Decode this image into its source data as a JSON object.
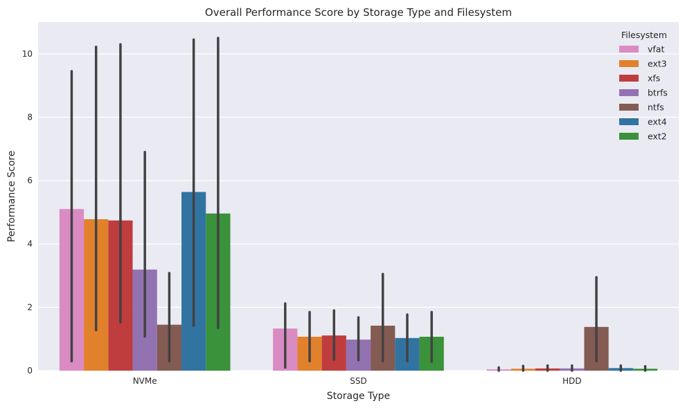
{
  "chart_data": {
    "type": "bar",
    "title": "Overall Performance Score by Storage Type and Filesystem",
    "xlabel": "Storage Type",
    "ylabel": "Performance Score",
    "categories": [
      "NVMe",
      "SSD",
      "HDD"
    ],
    "ylim": [
      0,
      11
    ],
    "yticks": [
      0,
      2,
      4,
      6,
      8,
      10
    ],
    "grid": true,
    "legend": {
      "title": "Filesystem",
      "placement": "top-right"
    },
    "series": [
      {
        "name": "vfat",
        "color": "#da8bc3",
        "values": [
          5.1,
          1.33,
          0.04
        ],
        "err_low": [
          0.3,
          0.1,
          0.0
        ],
        "err_high": [
          9.45,
          2.12,
          0.1
        ]
      },
      {
        "name": "ext3",
        "color": "#e1812c",
        "values": [
          4.78,
          1.07,
          0.06
        ],
        "err_low": [
          1.28,
          0.3,
          0.0
        ],
        "err_high": [
          10.22,
          1.85,
          0.15
        ]
      },
      {
        "name": "xfs",
        "color": "#c03d3e",
        "values": [
          4.74,
          1.11,
          0.07
        ],
        "err_low": [
          1.52,
          0.35,
          0.0
        ],
        "err_high": [
          10.3,
          1.9,
          0.16
        ]
      },
      {
        "name": "btrfs",
        "color": "#9372b2",
        "values": [
          3.19,
          0.98,
          0.07
        ],
        "err_low": [
          1.08,
          0.33,
          0.0
        ],
        "err_high": [
          6.9,
          1.68,
          0.16
        ]
      },
      {
        "name": "ntfs",
        "color": "#845b53",
        "values": [
          1.45,
          1.42,
          1.38
        ],
        "err_low": [
          0.3,
          0.3,
          0.3
        ],
        "err_high": [
          3.08,
          3.05,
          2.95
        ]
      },
      {
        "name": "ext4",
        "color": "#3274a1",
        "values": [
          5.64,
          1.03,
          0.08
        ],
        "err_low": [
          1.42,
          0.3,
          0.0
        ],
        "err_high": [
          10.45,
          1.77,
          0.16
        ]
      },
      {
        "name": "ext2",
        "color": "#3a923a",
        "values": [
          4.96,
          1.07,
          0.06
        ],
        "err_low": [
          1.35,
          0.28,
          0.0
        ],
        "err_high": [
          10.5,
          1.85,
          0.14
        ]
      }
    ]
  }
}
